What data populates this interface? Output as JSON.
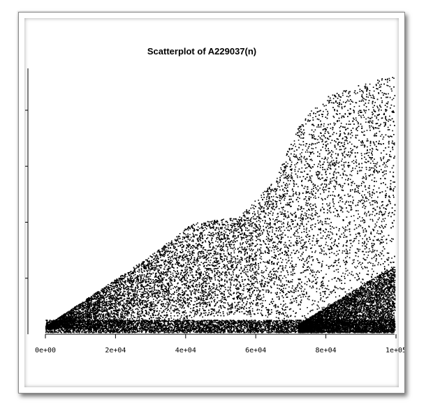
{
  "chart_data": {
    "type": "scatter",
    "title": "Scatterplot of A229037(n)",
    "xlabel": "",
    "ylabel": "",
    "xlim": [
      0,
      100000
    ],
    "x_ticks": [
      0,
      20000,
      40000,
      60000,
      80000,
      100000
    ],
    "x_tick_labels": [
      "0e+00",
      "2e+04",
      "4e+04",
      "6e+04",
      "8e+04",
      "1e+05"
    ],
    "y_ticks_count": 4,
    "point_color": "#000000",
    "bands": [
      {
        "x": [
          0,
          15000,
          30000,
          42000,
          55000,
          65000,
          72000,
          78000,
          88000,
          100000
        ],
        "y_low": [
          0.01,
          0.02,
          0.03,
          0.05,
          0.06,
          0.05,
          0.03,
          0.02,
          0.02,
          0.02
        ],
        "y_high": [
          0.02,
          0.15,
          0.28,
          0.4,
          0.42,
          0.55,
          0.75,
          0.85,
          0.9,
          0.95
        ]
      }
    ]
  }
}
